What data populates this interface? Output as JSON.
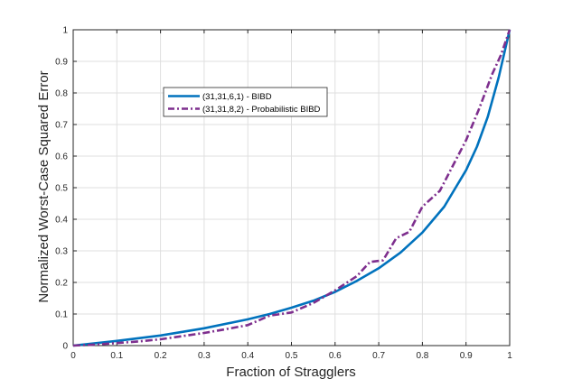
{
  "chart_data": {
    "type": "line",
    "xlabel": "Fraction of Stragglers",
    "ylabel": "Normalized Worst-Case Squared Error",
    "xlim": [
      0,
      1
    ],
    "ylim": [
      0,
      1
    ],
    "xticks": [
      "0",
      "0.1",
      "0.2",
      "0.3",
      "0.4",
      "0.5",
      "0.6",
      "0.7",
      "0.8",
      "0.9",
      "1"
    ],
    "yticks": [
      "0",
      "0.1",
      "0.2",
      "0.3",
      "0.4",
      "0.5",
      "0.6",
      "0.7",
      "0.8",
      "0.9",
      "1"
    ],
    "grid": true,
    "legend_position": "upper-left",
    "series": [
      {
        "name": "(31,31,6,1) - BIBD",
        "color": "#0072BD",
        "style": "solid",
        "x": [
          0,
          0.1,
          0.2,
          0.3,
          0.4,
          0.45,
          0.5,
          0.55,
          0.6,
          0.65,
          0.7,
          0.75,
          0.8,
          0.85,
          0.9,
          0.925,
          0.95,
          0.975,
          1.0
        ],
        "y": [
          0,
          0.015,
          0.032,
          0.055,
          0.083,
          0.1,
          0.12,
          0.142,
          0.17,
          0.205,
          0.245,
          0.295,
          0.358,
          0.44,
          0.555,
          0.63,
          0.725,
          0.85,
          1.0
        ]
      },
      {
        "name": "(31,31,8,2) - Probabilistic BIBD",
        "color": "#7E2F8E",
        "style": "dash-dot",
        "x": [
          0,
          0.05,
          0.1,
          0.15,
          0.2,
          0.25,
          0.3,
          0.35,
          0.4,
          0.45,
          0.5,
          0.55,
          0.6,
          0.65,
          0.68,
          0.71,
          0.74,
          0.77,
          0.8,
          0.84,
          0.87,
          0.9,
          0.93,
          0.96,
          0.98,
          1.0
        ],
        "y": [
          0,
          0.003,
          0.008,
          0.013,
          0.02,
          0.03,
          0.04,
          0.052,
          0.065,
          0.095,
          0.105,
          0.135,
          0.175,
          0.22,
          0.265,
          0.27,
          0.34,
          0.36,
          0.44,
          0.49,
          0.57,
          0.65,
          0.75,
          0.86,
          0.92,
          1.0
        ]
      }
    ]
  }
}
